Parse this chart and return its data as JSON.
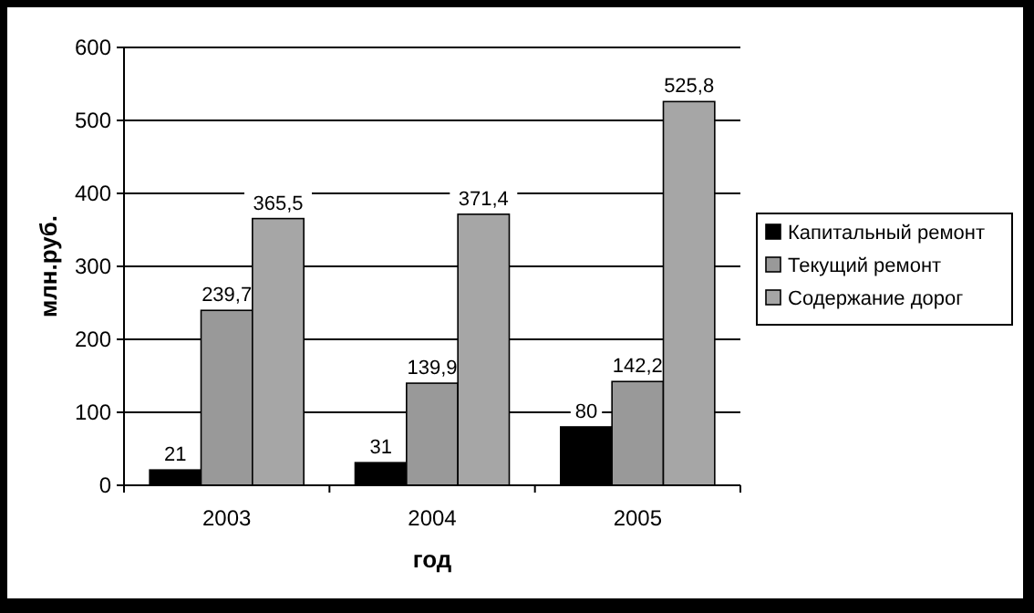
{
  "chart_data": {
    "type": "bar",
    "xlabel": "год",
    "ylabel": "млн.руб.",
    "categories": [
      "2003",
      "2004",
      "2005"
    ],
    "series": [
      {
        "name": "Капитальный ремонт",
        "color": "#000000",
        "values": [
          21,
          31,
          80
        ],
        "value_labels": [
          "21",
          "31",
          "80"
        ]
      },
      {
        "name": "Текущий ремонт",
        "color": "#999999",
        "values": [
          239.7,
          139.9,
          142.2
        ],
        "value_labels": [
          "239,7",
          "139,9",
          "142,2"
        ]
      },
      {
        "name": "Содержание дорог",
        "color": "#a6a6a6",
        "values": [
          365.5,
          371.4,
          525.8
        ],
        "value_labels": [
          "365,5",
          "371,4",
          "525,8"
        ]
      }
    ],
    "ylim": [
      0,
      600
    ],
    "yticks": [
      0,
      100,
      200,
      300,
      400,
      500,
      600
    ],
    "grid": "y",
    "legend": "right"
  }
}
